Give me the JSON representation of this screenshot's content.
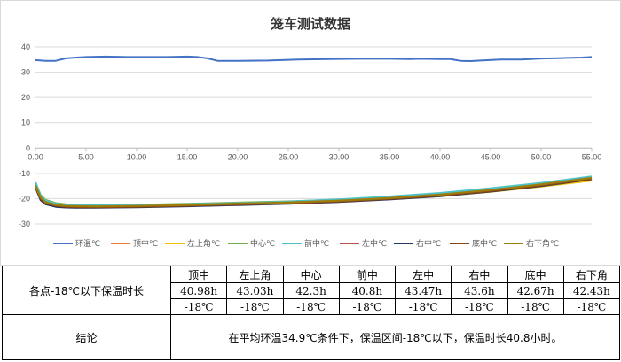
{
  "chart_data": {
    "type": "line",
    "title": "笼车测试数据",
    "xlim": [
      0,
      55
    ],
    "ylim": [
      -30,
      40
    ],
    "x_ticks": [
      "0.00",
      "5.00",
      "10.00",
      "15.00",
      "20.00",
      "25.00",
      "30.00",
      "35.00",
      "40.00",
      "45.00",
      "50.00",
      "55.00"
    ],
    "y_ticks": [
      "40",
      "30",
      "20",
      "10",
      "0",
      "-10",
      "-20",
      "-30"
    ],
    "grid": true,
    "legend_position": "bottom",
    "series": [
      {
        "name": "环温℃",
        "color": "#4472C4",
        "x": [
          0,
          1,
          2,
          3,
          4,
          5,
          7,
          9,
          11,
          13,
          15,
          16,
          17,
          18,
          20,
          23,
          26,
          29,
          32,
          35,
          37,
          38,
          40,
          41,
          42,
          43,
          44,
          46,
          48,
          50,
          52,
          54,
          55
        ],
        "y": [
          34.8,
          34.5,
          34.5,
          35.5,
          35.8,
          36,
          36.2,
          36,
          36,
          36,
          36.2,
          36,
          35.5,
          34.5,
          34.5,
          34.6,
          35,
          35.2,
          35.3,
          35.3,
          35.2,
          35.3,
          35.2,
          35.2,
          34.5,
          34.4,
          34.6,
          35,
          35,
          35.4,
          35.6,
          35.8,
          36
        ]
      },
      {
        "name": "顶中℃",
        "color": "#ED7D31",
        "x": [
          0,
          0.5,
          1,
          2,
          3,
          4,
          6,
          10,
          15,
          20,
          25,
          30,
          35,
          40,
          45,
          50,
          55
        ],
        "y": [
          -14,
          -19,
          -21,
          -22.2,
          -22.6,
          -22.8,
          -23,
          -22.9,
          -22.5,
          -22,
          -21.6,
          -21,
          -20,
          -18.5,
          -16.6,
          -14.6,
          -12.2
        ]
      },
      {
        "name": "左上角℃",
        "color": "#F0C000",
        "x": [
          0,
          0.5,
          1,
          2,
          3,
          4,
          6,
          10,
          15,
          20,
          25,
          30,
          35,
          40,
          45,
          50,
          55
        ],
        "y": [
          -14,
          -18.5,
          -20.5,
          -21.8,
          -22.3,
          -22.6,
          -22.8,
          -22.6,
          -22.2,
          -21.8,
          -21.5,
          -21,
          -20.2,
          -19,
          -17.3,
          -15.2,
          -12.8
        ]
      },
      {
        "name": "中心℃",
        "color": "#70AD47",
        "x": [
          0,
          0.5,
          1,
          2,
          3,
          4,
          6,
          10,
          15,
          20,
          25,
          30,
          35,
          40,
          45,
          50,
          55
        ],
        "y": [
          -13.6,
          -18.6,
          -20.6,
          -21.8,
          -22.3,
          -22.5,
          -22.6,
          -22.5,
          -22.1,
          -21.6,
          -21.1,
          -20.4,
          -19.5,
          -18.2,
          -16.5,
          -14.2,
          -11.4
        ]
      },
      {
        "name": "前中℃",
        "color": "#4DC3C8",
        "x": [
          0,
          0.5,
          1,
          2,
          3,
          4,
          6,
          10,
          15,
          20,
          25,
          30,
          35,
          40,
          45,
          50,
          55
        ],
        "y": [
          -13.5,
          -18.8,
          -20.8,
          -22,
          -22.5,
          -22.7,
          -22.8,
          -22.7,
          -22.3,
          -21.8,
          -21.2,
          -20.3,
          -19.2,
          -17.8,
          -15.9,
          -13.8,
          -11.2
        ]
      },
      {
        "name": "左中℃",
        "color": "#C0504D",
        "x": [
          0,
          0.5,
          1,
          2,
          3,
          4,
          6,
          10,
          15,
          20,
          25,
          30,
          35,
          40,
          45,
          50,
          55
        ],
        "y": [
          -15,
          -19.8,
          -21.6,
          -22.6,
          -23,
          -23.1,
          -23.2,
          -23,
          -22.6,
          -22.1,
          -21.6,
          -21,
          -20,
          -18.6,
          -16.8,
          -14.6,
          -12
        ]
      },
      {
        "name": "右中℃",
        "color": "#203864",
        "x": [
          0,
          0.5,
          1,
          2,
          3,
          4,
          6,
          10,
          15,
          20,
          25,
          30,
          35,
          40,
          45,
          50,
          55
        ],
        "y": [
          -15.5,
          -20.5,
          -22.2,
          -23.2,
          -23.5,
          -23.6,
          -23.6,
          -23.4,
          -23,
          -22.5,
          -22,
          -21.3,
          -20.3,
          -19,
          -17.2,
          -15,
          -12.3
        ]
      },
      {
        "name": "底中℃",
        "color": "#8B4513",
        "x": [
          0,
          0.5,
          1,
          2,
          3,
          4,
          6,
          10,
          15,
          20,
          25,
          30,
          35,
          40,
          45,
          50,
          55
        ],
        "y": [
          -15.2,
          -20,
          -21.8,
          -22.8,
          -23.2,
          -23.3,
          -23.4,
          -23.2,
          -22.8,
          -22.3,
          -21.8,
          -21.1,
          -20.1,
          -18.8,
          -17,
          -14.8,
          -12.2
        ]
      },
      {
        "name": "右下角℃",
        "color": "#9E7C0C",
        "x": [
          0,
          0.5,
          1,
          2,
          3,
          4,
          6,
          10,
          15,
          20,
          25,
          30,
          35,
          40,
          45,
          50,
          55
        ],
        "y": [
          -14.8,
          -19.6,
          -21.4,
          -22.5,
          -22.9,
          -23,
          -23.1,
          -22.9,
          -22.5,
          -22,
          -21.5,
          -20.8,
          -19.8,
          -18.4,
          -16.6,
          -14.4,
          -11.8
        ]
      }
    ]
  },
  "table": {
    "row_label": "各点-18℃以下保温时长",
    "headers": [
      "顶中",
      "左上角",
      "中心",
      "前中",
      "左中",
      "右中",
      "底中",
      "右下角"
    ],
    "hours": [
      "40.98h",
      "43.03h",
      "42.3h",
      "40.8h",
      "43.47h",
      "43.6h",
      "42.67h",
      "42.43h"
    ],
    "temps": [
      "-18℃",
      "-18℃",
      "-18℃",
      "-18℃",
      "-18℃",
      "-18℃",
      "-18℃",
      "-18℃"
    ],
    "conclusion_label": "结论",
    "conclusion_text": "在平均环温34.9℃条件下，保温区间-18℃以下，保温时长40.8小时。"
  }
}
